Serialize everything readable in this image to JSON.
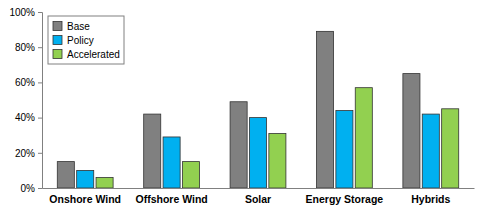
{
  "chart_data": {
    "type": "bar",
    "categories": [
      "Onshore Wind",
      "Offshore Wind",
      "Solar",
      "Energy Storage",
      "Hybrids"
    ],
    "series": [
      {
        "name": "Base",
        "color": "#808080",
        "values": [
          15,
          42,
          49,
          89,
          65
        ]
      },
      {
        "name": "Policy",
        "color": "#00b0f0",
        "values": [
          10,
          29,
          40,
          44,
          42
        ]
      },
      {
        "name": "Accelerated",
        "color": "#92d050",
        "values": [
          6,
          15,
          31,
          57,
          45
        ]
      }
    ],
    "ylim": [
      0,
      100
    ],
    "yticks": [
      {
        "value": 0,
        "label": "0%"
      },
      {
        "value": 20,
        "label": "20%"
      },
      {
        "value": 40,
        "label": "40%"
      },
      {
        "value": 60,
        "label": "60%"
      },
      {
        "value": 80,
        "label": "80%"
      },
      {
        "value": 100,
        "label": "100%"
      }
    ],
    "grid": false,
    "legend": "upper left"
  }
}
